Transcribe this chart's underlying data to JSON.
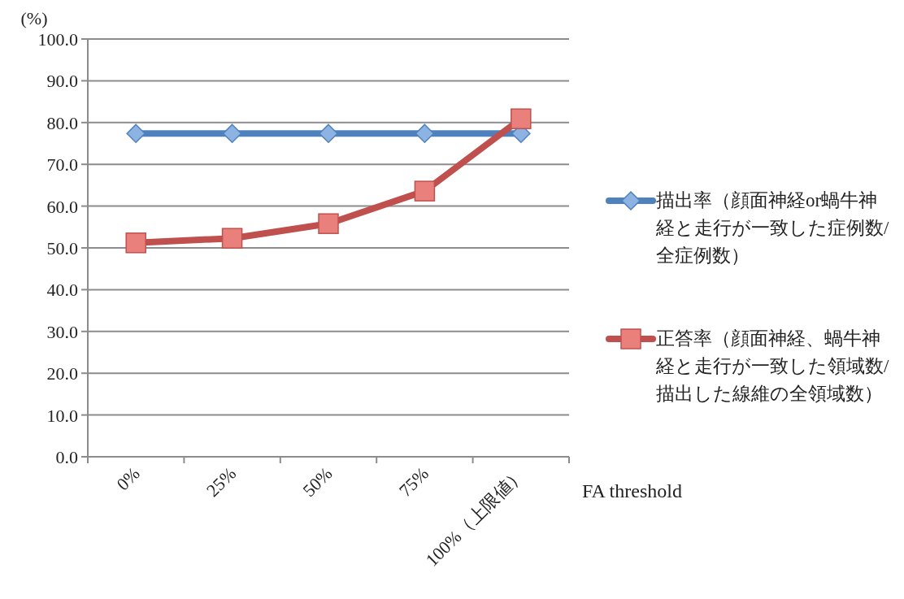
{
  "chart_data": {
    "type": "line",
    "ylabel": "(%)",
    "xlabel": "FA threshold",
    "categories": [
      "0%",
      "25%",
      "50%",
      "75%",
      "100%（上限値）"
    ],
    "series": [
      {
        "name": "描出率（顔面神経or蝸牛神経と走行が一致した症例数/全症例数）",
        "color": "#4f81bd",
        "marker": "diamond",
        "values": [
          77.4,
          77.4,
          77.4,
          77.4,
          77.4
        ]
      },
      {
        "name": "正答率（顔面神経、蝸牛神経と走行が一致した領域数/描出した線維の全領域数）",
        "color": "#c0504d",
        "marker": "square",
        "values": [
          51.2,
          52.3,
          55.8,
          63.6,
          80.9
        ]
      }
    ],
    "ylim": [
      0,
      100
    ],
    "yticks": [
      {
        "value": 0,
        "label": "0.0"
      },
      {
        "value": 10,
        "label": "10.0"
      },
      {
        "value": 20,
        "label": "20.0"
      },
      {
        "value": 30,
        "label": "30.0"
      },
      {
        "value": 40,
        "label": "40.0"
      },
      {
        "value": 50,
        "label": "50.0"
      },
      {
        "value": 60,
        "label": "60.0"
      },
      {
        "value": 70,
        "label": "70.0"
      },
      {
        "value": 80,
        "label": "80.0"
      },
      {
        "value": 90,
        "label": "90.0"
      },
      {
        "value": 100,
        "label": "100.0"
      }
    ],
    "grid": "y",
    "legend": "right",
    "line_style": "solid"
  }
}
